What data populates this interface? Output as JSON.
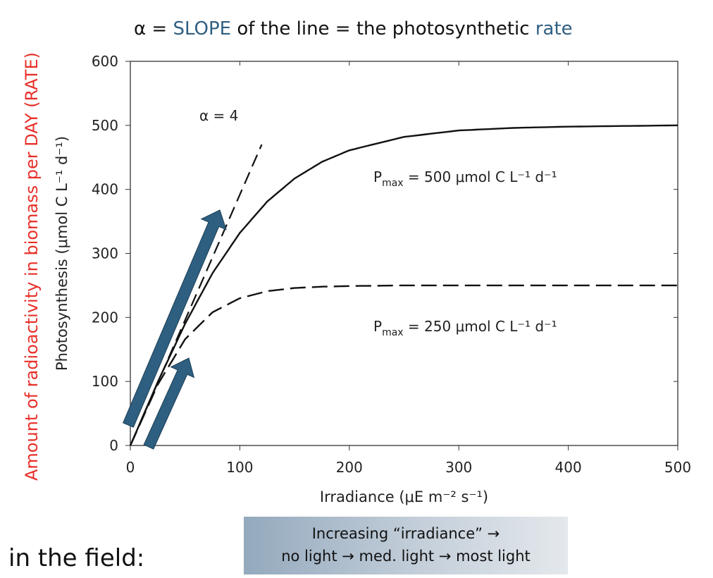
{
  "header": {
    "title_parts": [
      "α = ",
      "SLOPE",
      " of the line = the photosynthetic ",
      "rate"
    ],
    "accent": "#2f5f82"
  },
  "side_label": {
    "text": "Amount of radioactivity in biomass per DAY (RATE)",
    "color": "#e8302a"
  },
  "footer": {
    "field_label": "in the field:",
    "box_line1": "Increasing “irradiance” →",
    "box_line2": "no light → med. light → most light"
  },
  "chart_data": {
    "type": "line",
    "xlabel": "Irradiance (μE m⁻² s⁻¹)",
    "ylabel": "Photosynthesis (μmol C L⁻¹ d⁻¹)",
    "xlim": [
      0,
      500
    ],
    "ylim": [
      0,
      600
    ],
    "xticks": [
      0,
      100,
      200,
      300,
      400,
      500
    ],
    "yticks": [
      0,
      100,
      200,
      300,
      400,
      500,
      600
    ],
    "grid": false,
    "x": [
      0,
      25,
      50,
      75,
      100,
      125,
      150,
      175,
      200,
      250,
      300,
      350,
      400,
      450,
      500
    ],
    "series": [
      {
        "label": "Pmax = 500 μmol C L⁻¹ d⁻¹",
        "style": "solid",
        "values": [
          0,
          99,
          190,
          269,
          332,
          381,
          417,
          443,
          461,
          482,
          492,
          496,
          498,
          499,
          500
        ]
      },
      {
        "label": "Pmax = 250 μmol C L⁻¹ d⁻¹",
        "style": "dashed",
        "values": [
          0,
          95,
          166,
          208,
          230,
          241,
          246,
          248,
          249,
          250,
          250,
          250,
          250,
          250,
          250
        ]
      }
    ],
    "slope_line": {
      "label": "α = 4",
      "x": [
        0,
        120
      ],
      "y": [
        0,
        470
      ]
    },
    "annotations": {
      "alpha": "α = 4",
      "pmax500": {
        "pre": "P",
        "sub": "max",
        "post": " = 500 μmol C L⁻¹ d⁻¹"
      },
      "pmax250": {
        "pre": "P",
        "sub": "max",
        "post": " = 250 μmol C L⁻¹ d⁻¹"
      }
    },
    "arrow_color": "#2e5f80"
  }
}
